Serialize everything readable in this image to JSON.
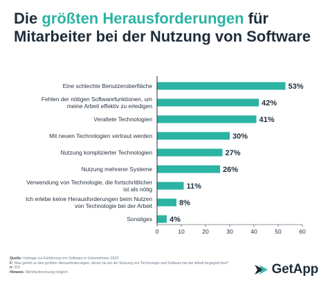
{
  "title": {
    "part1": "Die ",
    "highlight": "größten Herausforderungen",
    "part2": " für Mitarbeiter bei der Nutzung von Software"
  },
  "colors": {
    "bar": "#2bb3a3",
    "title_accent": "#2bb3a3",
    "text": "#1f2d3a",
    "axis": "#1f2d3a"
  },
  "chart_data": {
    "type": "bar",
    "orientation": "horizontal",
    "categories": [
      [
        "Eine schlechte Benutzeroberfläche"
      ],
      [
        "Fehlen der nötigen Softwarefunktionen, um",
        "meine Arbeit effektiv zu erledigen"
      ],
      [
        "Veraltete Technologien"
      ],
      [
        "Mit neuen Technologien vertraut werden"
      ],
      [
        "Nutzung komplizierter Technologien"
      ],
      [
        "Nutzung mehrerer Systeme"
      ],
      [
        "Verwendung von Technologie, die fortschrittlicher",
        "ist als nötig"
      ],
      [
        "Ich erlebe keine Herausforderungen beim Nutzen",
        "von Technologie bei der Arbeit"
      ],
      [
        "Sonstiges"
      ]
    ],
    "values": [
      53,
      42,
      41,
      30,
      27,
      26,
      11,
      8,
      4
    ],
    "value_labels": [
      "53%",
      "42%",
      "41%",
      "30%",
      "27%",
      "26%",
      "11%",
      "8%",
      "4%"
    ],
    "xlim": [
      0,
      60
    ],
    "xticks": [
      0,
      10,
      20,
      30,
      40,
      50,
      60
    ],
    "xlabel": "",
    "ylabel": "",
    "grid": false
  },
  "footnote": {
    "source_label": "Quelle:",
    "source_text": "Umfrage zur Einführung von Software in Unternehmen 2023",
    "question_label": "F:",
    "question_text": "Was gehört zu den größten Herausforderungen, denen du bei der Nutzung von Technologie und Software bei der Arbeit begegnet bist?",
    "n_label": "n:",
    "n_text": "319",
    "note_label": "Hinweis:",
    "note_text": "Mehrfachnennung möglich."
  },
  "logo": {
    "text": "GetApp",
    "icon": "getapp-arrow-icon",
    "color": "#1f2d3a"
  }
}
